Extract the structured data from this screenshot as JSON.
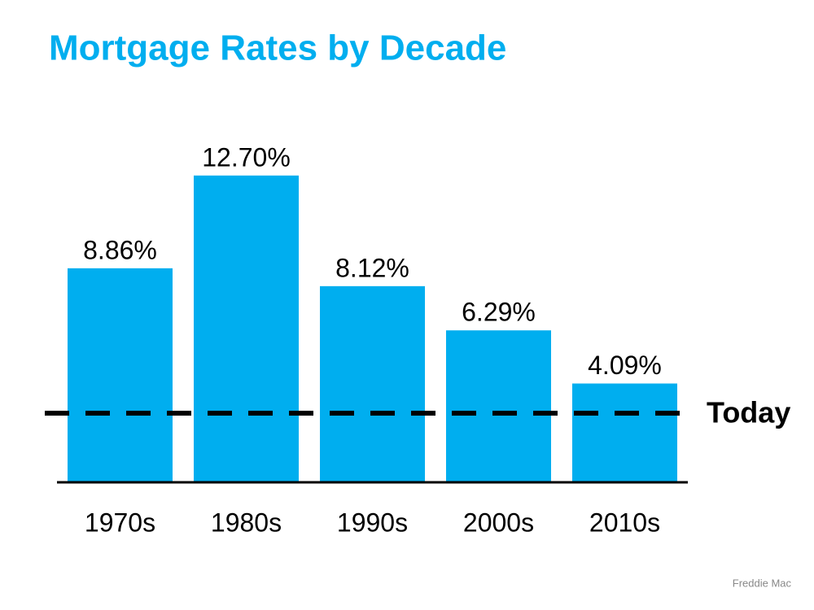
{
  "chart_data": {
    "type": "bar",
    "title": "Mortgage Rates by Decade",
    "categories": [
      "1970s",
      "1980s",
      "1990s",
      "2000s",
      "2010s"
    ],
    "values": [
      8.86,
      12.7,
      8.12,
      6.29,
      4.09
    ],
    "value_labels": [
      "8.86%",
      "12.70%",
      "8.12%",
      "6.29%",
      "4.09%"
    ],
    "color": "#00aeef",
    "reference_line": {
      "label": "Today",
      "value": 2.86
    },
    "source": "Freddie Mac"
  }
}
